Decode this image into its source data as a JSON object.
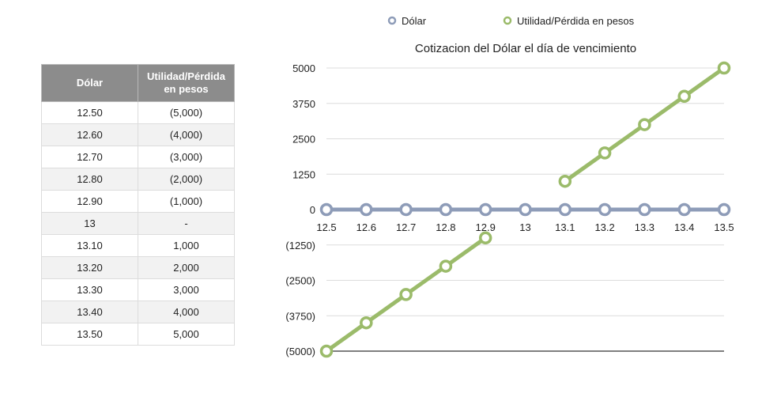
{
  "table": {
    "headers": [
      "Dólar",
      "Utilidad/Pérdida en pesos"
    ],
    "rows": [
      [
        "12.50",
        "(5,000)"
      ],
      [
        "12.60",
        "(4,000)"
      ],
      [
        "12.70",
        "(3,000)"
      ],
      [
        "12.80",
        "(2,000)"
      ],
      [
        "12.90",
        "(1,000)"
      ],
      [
        "13",
        "-"
      ],
      [
        "13.10",
        "1,000"
      ],
      [
        "13.20",
        "2,000"
      ],
      [
        "13.30",
        "3,000"
      ],
      [
        "13.40",
        "4,000"
      ],
      [
        "13.50",
        "5,000"
      ]
    ]
  },
  "chart_data": {
    "type": "line",
    "title": "Cotizacion del Dólar el día de vencimiento",
    "categories": [
      "12.5",
      "12.6",
      "12.7",
      "12.8",
      "12.9",
      "13",
      "13.1",
      "13.2",
      "13.3",
      "13.4",
      "13.5"
    ],
    "series": [
      {
        "name": "Dólar",
        "color": "#8e9cb8",
        "values": [
          0,
          0,
          0,
          0,
          0,
          0,
          0,
          0,
          0,
          0,
          0
        ]
      },
      {
        "name": "Utilidad/Pérdida en pesos",
        "color": "#9bbb6a",
        "values": [
          -5000,
          -4000,
          -3000,
          -2000,
          -1000,
          null,
          1000,
          2000,
          3000,
          4000,
          5000
        ]
      }
    ],
    "yticks": [
      {
        "value": 5000,
        "label": "5000"
      },
      {
        "value": 3750,
        "label": "3750"
      },
      {
        "value": 2500,
        "label": "2500"
      },
      {
        "value": 1250,
        "label": "1250"
      },
      {
        "value": 0,
        "label": "0"
      },
      {
        "value": -1250,
        "label": "(1250)"
      },
      {
        "value": -2500,
        "label": "(2500)"
      },
      {
        "value": -3750,
        "label": "(3750)"
      },
      {
        "value": -5000,
        "label": "(5000)"
      }
    ],
    "ylim": [
      -5000,
      5000
    ],
    "grid": true,
    "legend_position": "top"
  }
}
